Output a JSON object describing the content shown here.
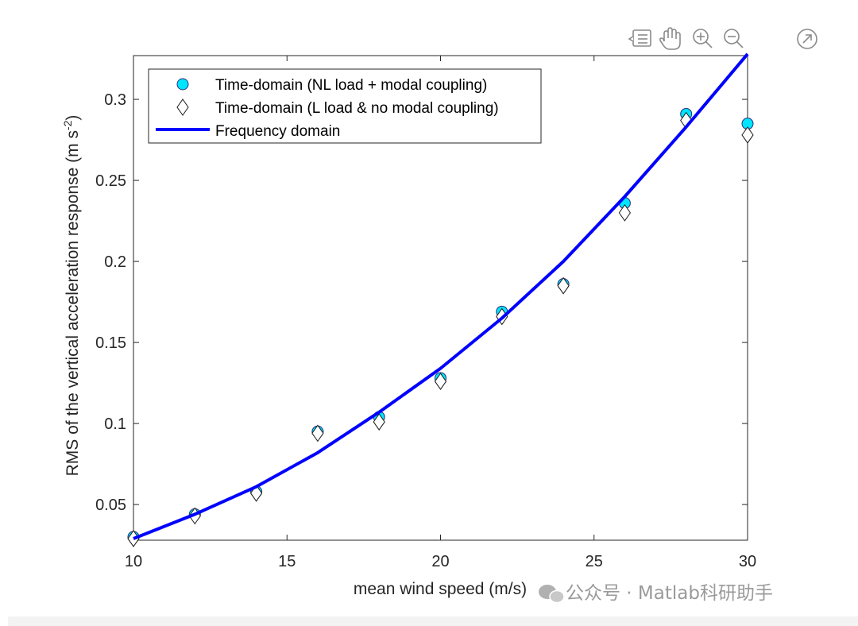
{
  "toolbar": {
    "icons": [
      "data-tips-icon",
      "pan-hand-icon",
      "zoom-in-icon",
      "zoom-out-icon",
      "export-icon"
    ]
  },
  "watermark": {
    "text": "公众号 · Matlab科研助手",
    "icon": "wechat-icon"
  },
  "chart_data": {
    "type": "scatter",
    "title": "",
    "xlabel": "mean wind speed (m/s)",
    "ylabel": "RMS of the vertical acceleration response (m s",
    "ylabel_sup": "-2",
    "ylabel_end": ")",
    "xlim": [
      10,
      30
    ],
    "ylim": [
      0.028,
      0.327
    ],
    "xticks": [
      10,
      15,
      20,
      25,
      30
    ],
    "xtick_labels": [
      "10",
      "15",
      "20",
      "25",
      "30"
    ],
    "yticks": [
      0.05,
      0.1,
      0.15,
      0.2,
      0.25,
      0.3
    ],
    "ytick_labels": [
      "0.05",
      "0.1",
      "0.15",
      "0.2",
      "0.25",
      "0.3"
    ],
    "grid": false,
    "legend_position": "top-left",
    "colors": {
      "axis": "#262626",
      "circle_fill": "#00e5ff",
      "circle_edge": "#2a2f7a",
      "line": "#0000ff",
      "diamond_edge": "#1a1a1a"
    },
    "series": [
      {
        "name": "Time-domain (NL load + modal coupling)",
        "marker": "circle",
        "x": [
          10,
          12,
          14,
          16,
          18,
          20,
          22,
          24,
          26,
          28,
          30
        ],
        "y": [
          0.03,
          0.044,
          0.058,
          0.095,
          0.104,
          0.128,
          0.169,
          0.186,
          0.236,
          0.291,
          0.285
        ]
      },
      {
        "name": "Time-domain (L load & no modal coupling)",
        "marker": "diamond",
        "x": [
          10,
          12,
          14,
          16,
          18,
          20,
          22,
          24,
          26,
          28,
          30
        ],
        "y": [
          0.029,
          0.043,
          0.057,
          0.094,
          0.101,
          0.126,
          0.166,
          0.185,
          0.23,
          0.287,
          0.278
        ]
      },
      {
        "name": "Frequency domain",
        "marker": "line",
        "x": [
          10,
          12,
          14,
          16,
          18,
          20,
          22,
          24,
          26,
          28,
          30
        ],
        "y": [
          0.029,
          0.044,
          0.061,
          0.082,
          0.107,
          0.134,
          0.165,
          0.2,
          0.24,
          0.283,
          0.328
        ]
      }
    ]
  }
}
